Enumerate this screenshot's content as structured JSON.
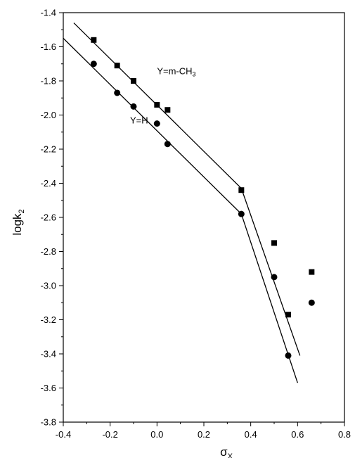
{
  "chart_data": {
    "type": "scatter",
    "xlabel": "σ",
    "xlabel_sub": "X",
    "ylabel": "logk",
    "ylabel_sub": "2",
    "xlim": [
      -0.4,
      0.8
    ],
    "ylim": [
      -3.8,
      -1.4
    ],
    "xticks": [
      -0.4,
      -0.2,
      0.0,
      0.2,
      0.4,
      0.6,
      0.8
    ],
    "xtick_labels": [
      "-0.4",
      "-0.2",
      "0.0",
      "0.2",
      "0.4",
      "0.6",
      "0.8"
    ],
    "yticks": [
      -3.8,
      -3.6,
      -3.4,
      -3.2,
      -3.0,
      -2.8,
      -2.6,
      -2.4,
      -2.2,
      -2.0,
      -1.8,
      -1.6,
      -1.4
    ],
    "ytick_labels": [
      "-3.8",
      "-3.6",
      "-3.4",
      "-3.2",
      "-3.0",
      "-2.8",
      "-2.6",
      "-2.4",
      "-2.2",
      "-2.0",
      "-1.8",
      "-1.6",
      "-1.4"
    ],
    "grid": false,
    "series": [
      {
        "key": "squares",
        "marker": "square",
        "label_main": "Y=m-CH",
        "label_sub": "3",
        "label_at": [
          0.0,
          -1.76
        ],
        "points": [
          [
            -0.27,
            -1.56
          ],
          [
            -0.17,
            -1.71
          ],
          [
            -0.1,
            -1.8
          ],
          [
            0.0,
            -1.94
          ],
          [
            0.045,
            -1.97
          ],
          [
            0.36,
            -2.44
          ],
          [
            0.5,
            -2.75
          ],
          [
            0.56,
            -3.17
          ],
          [
            0.66,
            -2.92
          ]
        ],
        "fit_lines": [
          [
            [
              -0.355,
              -1.46
            ],
            [
              0.36,
              -2.43
            ]
          ],
          [
            [
              0.36,
              -2.43
            ],
            [
              0.61,
              -3.41
            ]
          ]
        ]
      },
      {
        "key": "circles",
        "marker": "circle",
        "label_main": "Y=H",
        "label_sub": "",
        "label_at": [
          -0.115,
          -2.05
        ],
        "points": [
          [
            -0.27,
            -1.7
          ],
          [
            -0.17,
            -1.87
          ],
          [
            -0.1,
            -1.95
          ],
          [
            0.0,
            -2.05
          ],
          [
            0.045,
            -2.17
          ],
          [
            0.36,
            -2.58
          ],
          [
            0.5,
            -2.95
          ],
          [
            0.56,
            -3.41
          ],
          [
            0.66,
            -3.1
          ]
        ],
        "fit_lines": [
          [
            [
              -0.4,
              -1.55
            ],
            [
              0.36,
              -2.58
            ]
          ],
          [
            [
              0.36,
              -2.58
            ],
            [
              0.6,
              -3.57
            ]
          ]
        ]
      }
    ]
  }
}
